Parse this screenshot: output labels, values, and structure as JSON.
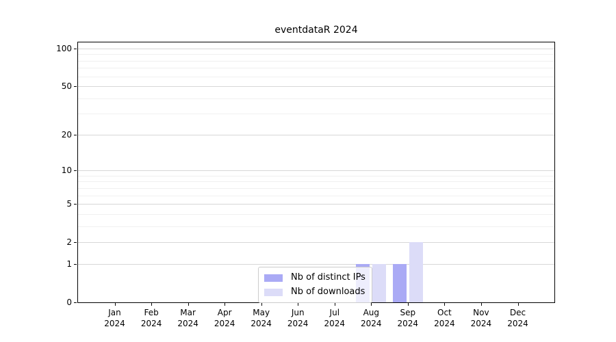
{
  "chart_data": {
    "type": "bar",
    "title": "eventdataR 2024",
    "categories": [
      {
        "line1": "Jan",
        "line2": "2024"
      },
      {
        "line1": "Feb",
        "line2": "2024"
      },
      {
        "line1": "Mar",
        "line2": "2024"
      },
      {
        "line1": "Apr",
        "line2": "2024"
      },
      {
        "line1": "May",
        "line2": "2024"
      },
      {
        "line1": "Jun",
        "line2": "2024"
      },
      {
        "line1": "Jul",
        "line2": "2024"
      },
      {
        "line1": "Aug",
        "line2": "2024"
      },
      {
        "line1": "Sep",
        "line2": "2024"
      },
      {
        "line1": "Oct",
        "line2": "2024"
      },
      {
        "line1": "Nov",
        "line2": "2024"
      },
      {
        "line1": "Dec",
        "line2": "2024"
      }
    ],
    "series": [
      {
        "name": "Nb of distinct IPs",
        "color": "#aaaaf5",
        "values": [
          0,
          0,
          0,
          0,
          0,
          0,
          0,
          1,
          1,
          0,
          0,
          0
        ]
      },
      {
        "name": "Nb of downloads",
        "color": "#dcdcf8",
        "values": [
          0,
          0,
          0,
          0,
          0,
          0,
          0,
          1,
          2,
          0,
          0,
          0
        ]
      }
    ],
    "xlabel": "",
    "ylabel": "",
    "y_scale": "log1p",
    "y_ticks": [
      0,
      1,
      2,
      5,
      10,
      20,
      50,
      100
    ],
    "y_minor_ticks": [
      3,
      4,
      6,
      7,
      8,
      9,
      30,
      40,
      60,
      70,
      80,
      90
    ],
    "ylim": [
      0,
      112
    ],
    "grid": "horizontal",
    "legend_position": "bottom-center-inside"
  }
}
